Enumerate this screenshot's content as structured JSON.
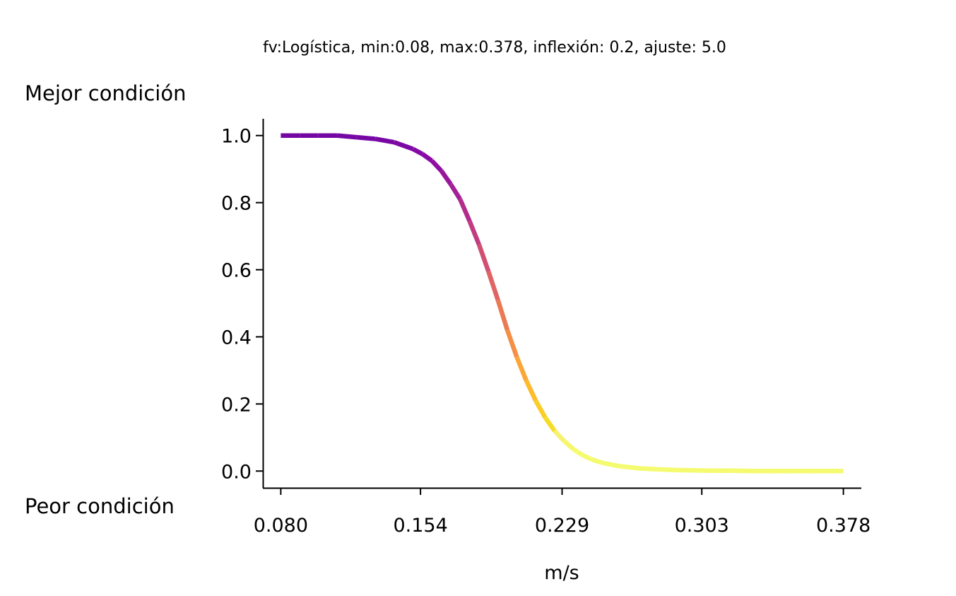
{
  "chart_data": {
    "type": "line",
    "title": "fv:Logística, min:0.08, max:0.378, inflexión: 0.2, ajuste: 5.0",
    "xlabel": "m/s",
    "ylabel": "",
    "top_label": "Mejor condición",
    "bottom_label": "Peor condición",
    "xlim": [
      0.0705,
      0.3875
    ],
    "ylim": [
      -0.05,
      1.05
    ],
    "x_ticks": [
      0.08,
      0.154,
      0.229,
      0.303,
      0.378
    ],
    "x_tick_labels": [
      "0.080",
      "0.154",
      "0.229",
      "0.303",
      "0.378"
    ],
    "y_ticks": [
      0.0,
      0.2,
      0.4,
      0.6,
      0.8,
      1.0
    ],
    "y_tick_labels": [
      "0.0",
      "0.2",
      "0.4",
      "0.6",
      "0.8",
      "1.0"
    ],
    "colormap": "plasma",
    "grid": false,
    "legend": "none",
    "series": [
      {
        "x": [
          0.08,
          0.09,
          0.1,
          0.11,
          0.12,
          0.13,
          0.14,
          0.15,
          0.155,
          0.16,
          0.165,
          0.17,
          0.175,
          0.18,
          0.185,
          0.19,
          0.195,
          0.2,
          0.205,
          0.21,
          0.215,
          0.22,
          0.225,
          0.23,
          0.235,
          0.24,
          0.245,
          0.25,
          0.26,
          0.27,
          0.28,
          0.29,
          0.3,
          0.31,
          0.32,
          0.33,
          0.34,
          0.35,
          0.36,
          0.37,
          0.378
        ],
        "y": [
          1.0,
          1.0,
          1.0,
          1.0,
          0.995,
          0.99,
          0.98,
          0.96,
          0.945,
          0.925,
          0.895,
          0.855,
          0.81,
          0.745,
          0.675,
          0.595,
          0.51,
          0.42,
          0.34,
          0.27,
          0.21,
          0.16,
          0.12,
          0.09,
          0.065,
          0.047,
          0.034,
          0.025,
          0.014,
          0.008,
          0.005,
          0.003,
          0.002,
          0.001,
          0.001,
          0.0,
          0.0,
          0.0,
          0.0,
          0.0,
          0.0
        ]
      }
    ]
  }
}
